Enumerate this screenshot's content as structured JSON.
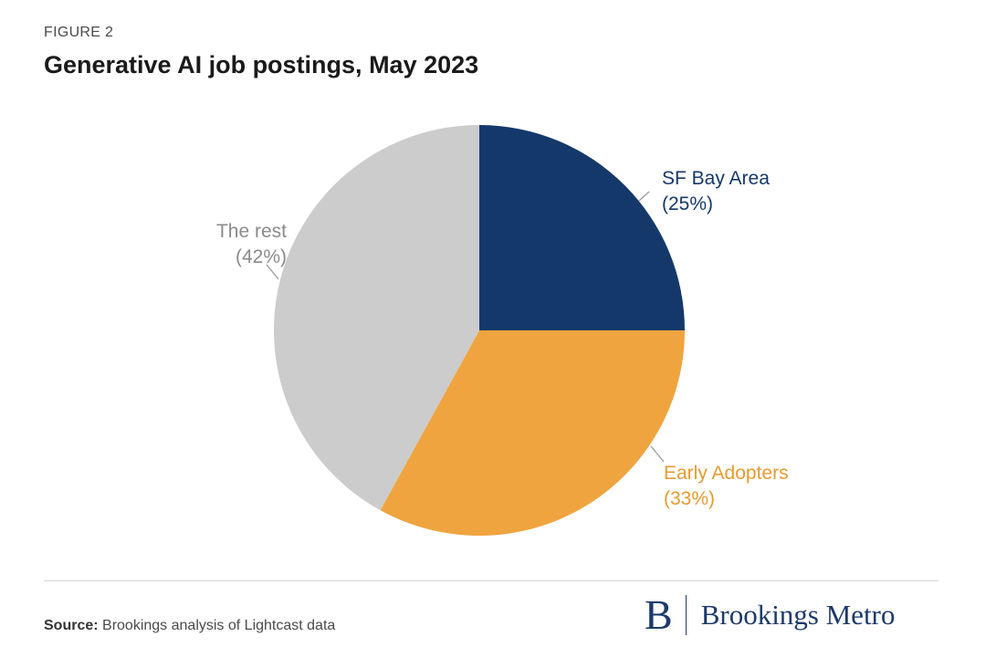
{
  "header": {
    "eyebrow": "FIGURE 2",
    "title": "Generative AI job postings, May 2023"
  },
  "footer": {
    "source_label": "Source:",
    "source_text": "Brookings analysis of Lightcast data",
    "logo_mark": "B",
    "logo_text": "Brookings Metro"
  },
  "chart_data": {
    "type": "pie",
    "slices": [
      {
        "label": "SF Bay Area",
        "value": 25,
        "value_label": "(25%)",
        "color": "#15386b",
        "label_color": "#15386b"
      },
      {
        "label": "Early Adopters",
        "value": 33,
        "value_label": "(33%)",
        "color": "#f0a43f",
        "label_color": "#e89a2f"
      },
      {
        "label": "The rest",
        "value": 42,
        "value_label": "(42%)",
        "color": "#cccccc",
        "label_color": "#8a8a8a"
      }
    ],
    "start": "12 o'clock",
    "direction": "clockwise"
  }
}
